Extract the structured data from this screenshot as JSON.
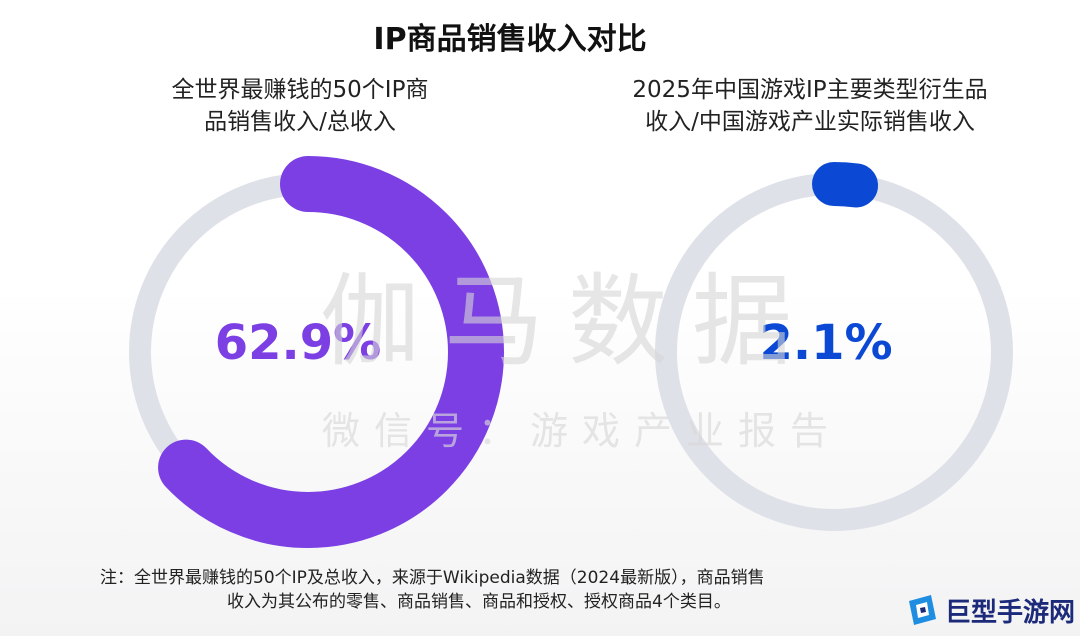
{
  "title": "IP商品销售收入对比",
  "chart_data": [
    {
      "type": "pie",
      "subtitle_lines": [
        "全世界最赚钱的50个IP商",
        "品销售收入/总收入"
      ],
      "value": 62.9,
      "max": 100,
      "label": "62.9%",
      "color": "#7b3fe4",
      "track_color": "#dfe1e8"
    },
    {
      "type": "pie",
      "subtitle_lines": [
        "2025年中国游戏IP主要类型衍生品",
        "收入/中国游戏产业实际销售收入"
      ],
      "value": 2.1,
      "max": 100,
      "label": "2.1%",
      "color": "#0b49d4",
      "track_color": "#dfe1e8"
    }
  ],
  "watermark": {
    "main": "伽马数据",
    "sub": "微信号：游戏产业报告"
  },
  "note": {
    "line1": "注：全世界最赚钱的50个IP及总收入，来源于Wikipedia数据（2024最新版），商品销售",
    "line2": "收入为其公布的零售、商品销售、商品和授权、授权商品4个类目。"
  },
  "logo": {
    "text": "巨型手游网",
    "icon": "logo-mark-icon"
  }
}
